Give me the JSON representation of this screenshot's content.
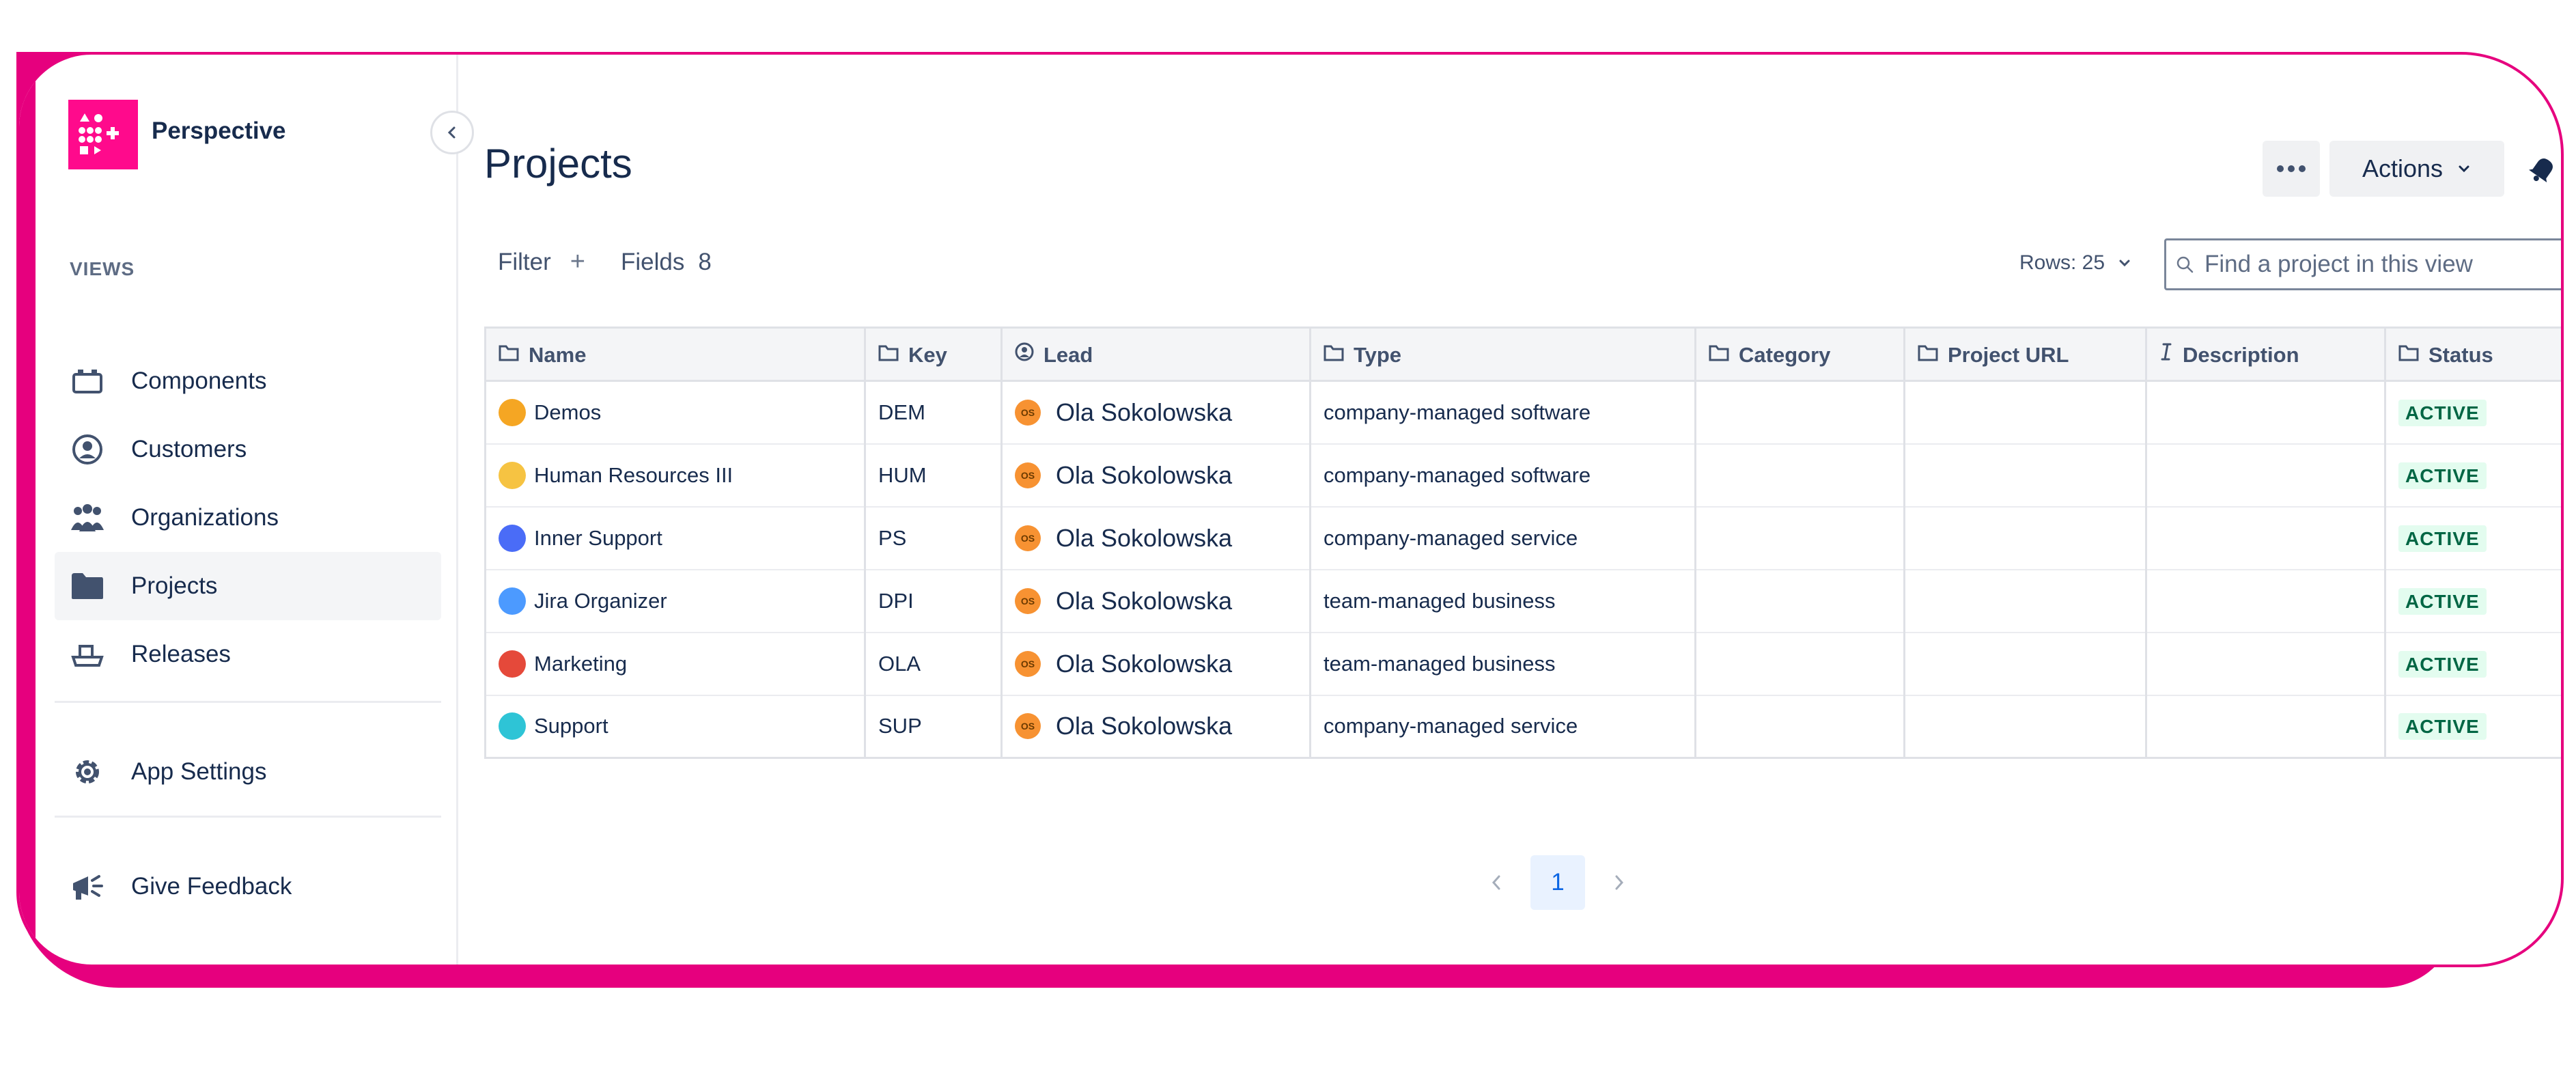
{
  "brand": {
    "name": "Perspective",
    "color": "#ff0a8c"
  },
  "sidebar": {
    "section_label": "VIEWS",
    "items": [
      {
        "label": "Components",
        "icon": "components-icon",
        "active": false
      },
      {
        "label": "Customers",
        "icon": "customer-icon",
        "active": false
      },
      {
        "label": "Organizations",
        "icon": "organizations-icon",
        "active": false
      },
      {
        "label": "Projects",
        "icon": "folder-icon",
        "active": true
      },
      {
        "label": "Releases",
        "icon": "releases-icon",
        "active": false
      }
    ],
    "settings_label": "App Settings",
    "feedback_label": "Give Feedback"
  },
  "header": {
    "title": "Projects",
    "actions_label": "Actions"
  },
  "toolbar": {
    "filter_label": "Filter",
    "fields_label": "Fields",
    "fields_count": "8",
    "rows_label": "Rows: 25",
    "search_placeholder": "Find a project in this view"
  },
  "table": {
    "columns": [
      "Name",
      "Key",
      "Lead",
      "Type",
      "Category",
      "Project URL",
      "Description",
      "Status"
    ],
    "rows": [
      {
        "name": "Demos",
        "key": "DEM",
        "lead": "Ola Sokolowska",
        "lead_initials": "OS",
        "type": "company-managed software",
        "status": "ACTIVE",
        "icon_color": "#f5a623"
      },
      {
        "name": "Human Resources III",
        "key": "HUM",
        "lead": "Ola Sokolowska",
        "lead_initials": "OS",
        "type": "company-managed software",
        "status": "ACTIVE",
        "icon_color": "#f6c342"
      },
      {
        "name": "Inner Support",
        "key": "PS",
        "lead": "Ola Sokolowska",
        "lead_initials": "OS",
        "type": "company-managed service",
        "status": "ACTIVE",
        "icon_color": "#4a6cf7"
      },
      {
        "name": "Jira Organizer",
        "key": "DPI",
        "lead": "Ola Sokolowska",
        "lead_initials": "OS",
        "type": "team-managed business",
        "status": "ACTIVE",
        "icon_color": "#4c9aff"
      },
      {
        "name": "Marketing",
        "key": "OLA",
        "lead": "Ola Sokolowska",
        "lead_initials": "OS",
        "type": "team-managed business",
        "status": "ACTIVE",
        "icon_color": "#e5493a"
      },
      {
        "name": "Support",
        "key": "SUP",
        "lead": "Ola Sokolowska",
        "lead_initials": "OS",
        "type": "company-managed service",
        "status": "ACTIVE",
        "icon_color": "#2ec4d6"
      }
    ]
  },
  "pagination": {
    "current": "1"
  }
}
